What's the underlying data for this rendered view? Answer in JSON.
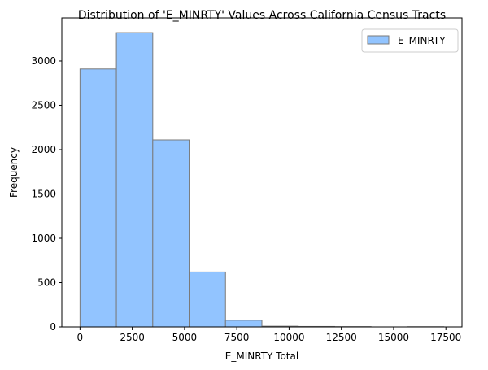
{
  "chart_data": {
    "type": "bar",
    "title": "Distribution of 'E_MINRTY' Values Across California Census Tracts",
    "xlabel": "E_MINRTY Total",
    "ylabel": "Frequency",
    "bin_edges": [
      0,
      1740,
      3480,
      5220,
      6960,
      8700,
      10440,
      12180,
      13920,
      15660,
      17400
    ],
    "values": [
      2910,
      3320,
      2110,
      620,
      75,
      8,
      5,
      3,
      0,
      2
    ],
    "xlim": [
      -870,
      18270
    ],
    "ylim": [
      0,
      3486
    ],
    "xticks": [
      0,
      2500,
      5000,
      7500,
      10000,
      12500,
      15000,
      17500
    ],
    "xtick_labels": [
      "0",
      "2500",
      "5000",
      "7500",
      "10000",
      "12500",
      "15000",
      "17500"
    ],
    "yticks": [
      0,
      500,
      1000,
      1500,
      2000,
      2500,
      3000
    ],
    "ytick_labels": [
      "0",
      "500",
      "1000",
      "1500",
      "2000",
      "2500",
      "3000"
    ],
    "series": [
      {
        "name": "E_MINRTY"
      }
    ],
    "legend": "top-right",
    "grid": false,
    "colors": {
      "bar_fill": "#92c4ff",
      "bar_edge": "#7a7a7a"
    }
  }
}
